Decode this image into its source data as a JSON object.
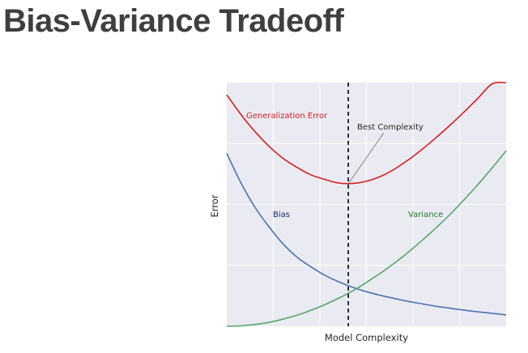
{
  "slide": {
    "title": "Bias-Variance Tradeoff"
  },
  "chart_data": {
    "type": "line",
    "title": "",
    "xlabel": "Model Complexity",
    "ylabel": "Error",
    "xlim": [
      0,
      1
    ],
    "ylim": [
      0,
      1
    ],
    "x_ticks_labeled": false,
    "y_ticks_labeled": false,
    "grid": true,
    "legend": "none",
    "background": "#eaeaf2",
    "series": [
      {
        "name": "Bias",
        "color": "#4c72b0",
        "label_color": "#1a2a6b",
        "x": [
          0.0,
          0.05,
          0.1,
          0.15,
          0.2,
          0.25,
          0.3,
          0.35,
          0.4,
          0.45,
          0.5,
          0.55,
          0.6,
          0.65,
          0.7,
          0.75,
          0.8,
          0.85,
          0.9,
          0.95,
          1.0
        ],
        "values": [
          0.71,
          0.59,
          0.49,
          0.41,
          0.34,
          0.285,
          0.245,
          0.21,
          0.183,
          0.16,
          0.142,
          0.127,
          0.114,
          0.102,
          0.092,
          0.082,
          0.074,
          0.066,
          0.059,
          0.053,
          0.047
        ]
      },
      {
        "name": "Variance",
        "color": "#55a868",
        "label_color": "#1f7a2a",
        "x": [
          0.0,
          0.05,
          0.1,
          0.15,
          0.2,
          0.25,
          0.3,
          0.35,
          0.4,
          0.45,
          0.5,
          0.55,
          0.6,
          0.65,
          0.7,
          0.75,
          0.8,
          0.85,
          0.9,
          0.95,
          1.0
        ],
        "values": [
          0.0,
          0.0018,
          0.0072,
          0.016,
          0.029,
          0.045,
          0.065,
          0.088,
          0.115,
          0.145,
          0.18,
          0.218,
          0.259,
          0.304,
          0.353,
          0.405,
          0.46,
          0.52,
          0.583,
          0.65,
          0.72
        ]
      },
      {
        "name": "Generalization Error",
        "color": "#d62020",
        "label_color": "#d62020",
        "x": [
          0.0,
          0.05,
          0.1,
          0.15,
          0.2,
          0.25,
          0.3,
          0.35,
          0.4,
          0.45,
          0.5,
          0.55,
          0.6,
          0.65,
          0.7,
          0.75,
          0.8,
          0.85,
          0.9,
          0.95,
          1.0
        ],
        "values": [
          0.95,
          0.87,
          0.8,
          0.74,
          0.69,
          0.653,
          0.622,
          0.603,
          0.588,
          0.586,
          0.595,
          0.615,
          0.645,
          0.683,
          0.727,
          0.775,
          0.826,
          0.88,
          0.937,
          0.995,
          1.0
        ]
      }
    ],
    "annotations": [
      {
        "text": "Best Complexity",
        "x": 0.435,
        "y": 0.585,
        "text_x": 0.47,
        "text_y": 0.81
      }
    ],
    "vline": {
      "x": 0.435,
      "style": "dashed",
      "color": "#000000"
    }
  }
}
